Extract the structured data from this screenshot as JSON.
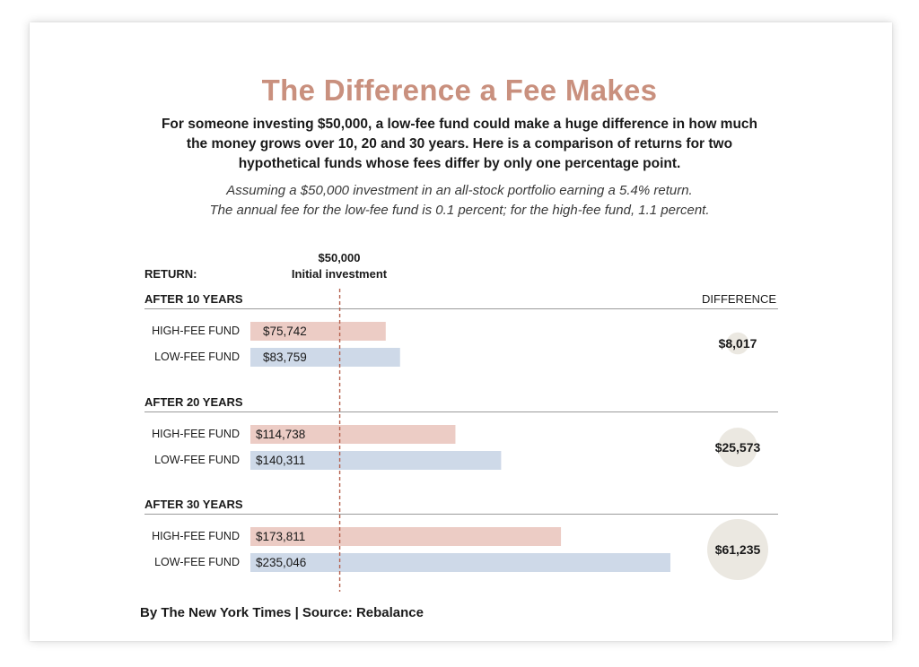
{
  "title": "The Difference a Fee Makes",
  "subtitle": "For someone investing $50,000, a low-fee fund could make a huge difference in how much the money grows over 10, 20 and 30 years. Here is a comparison of returns for two hypothetical funds whose fees differ by only one percentage point.",
  "note_line1": "Assuming a $50,000 investment in an all-stock portfolio earning a 5.4% return.",
  "note_line2": "The annual fee for the low-fee fund is 0.1 percent; for the high-fee fund, 1.1 percent.",
  "return_label": "RETURN:",
  "initial_value": "$50,000",
  "initial_label": "Initial investment",
  "difference_header": "DIFFERENCE",
  "credit": "By The New York Times | Source: Rebalance",
  "colors": {
    "title": "#c9907e",
    "high_fee": "#ecccc5",
    "low_fee": "#ced9e8",
    "circle": "#ebe8e1",
    "reference_line": "#b5624f"
  },
  "chart_data": {
    "type": "bar",
    "orientation": "horizontal",
    "reference_value": 50000,
    "groups": [
      {
        "label": "AFTER 10 YEARS",
        "difference": 8017,
        "difference_label": "$8,017",
        "bars": [
          {
            "name": "HIGH-FEE FUND",
            "value": 75742,
            "value_label": "$75,742",
            "series": "high"
          },
          {
            "name": "LOW-FEE FUND",
            "value": 83759,
            "value_label": "$83,759",
            "series": "low"
          }
        ]
      },
      {
        "label": "AFTER 20 YEARS",
        "difference": 25573,
        "difference_label": "$25,573",
        "bars": [
          {
            "name": "HIGH-FEE FUND",
            "value": 114738,
            "value_label": "$114,738",
            "series": "high"
          },
          {
            "name": "LOW-FEE FUND",
            "value": 140311,
            "value_label": "$140,311",
            "series": "low"
          }
        ]
      },
      {
        "label": "AFTER 30 YEARS",
        "difference": 61235,
        "difference_label": "$61,235",
        "bars": [
          {
            "name": "HIGH-FEE FUND",
            "value": 173811,
            "value_label": "$173,811",
            "series": "high"
          },
          {
            "name": "LOW-FEE FUND",
            "value": 235046,
            "value_label": "$235,046",
            "series": "low"
          }
        ]
      }
    ]
  }
}
